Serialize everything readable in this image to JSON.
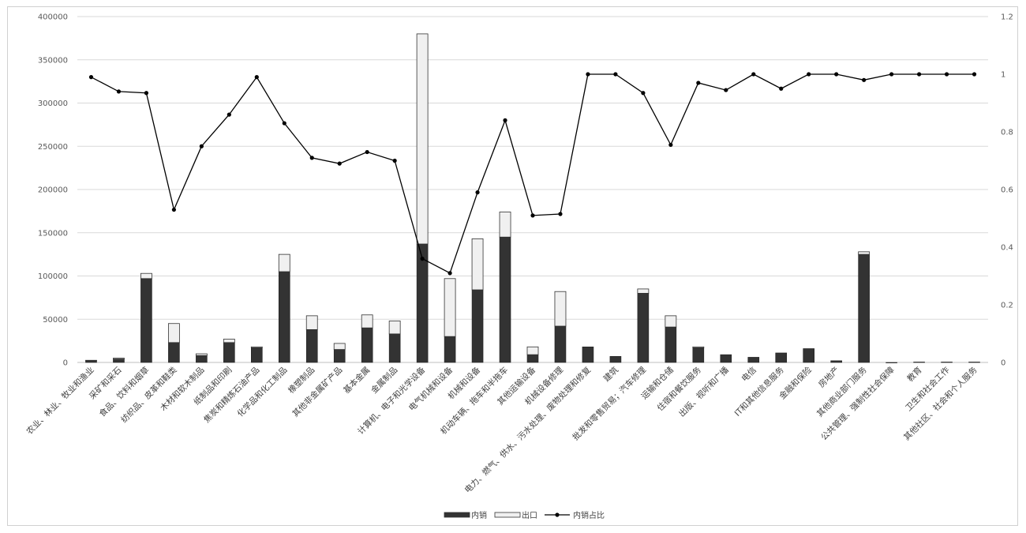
{
  "chart_data": {
    "type": "bar",
    "stacked": true,
    "categories": [
      "农业、林业、牧业和渔业",
      "采矿和采石",
      "食品、饮料和烟草",
      "纺织品、皮革和鞋类",
      "木材和软木制品",
      "纸制品和印刷",
      "焦炭和精炼石油产品",
      "化学品和化工制品",
      "橡塑制品",
      "其他非金属矿产品",
      "基本金属",
      "金属制品",
      "计算机、电子和光学设备",
      "电气机械和设备",
      "机械和设备",
      "机动车辆、拖车和半拖车",
      "其他运输设备",
      "机械设备修理",
      "电力、燃气、供水、污水处理、废物处理和修复",
      "建筑",
      "批发和零售贸易；汽车修理",
      "运输和仓储",
      "住宿和餐饮服务",
      "出版、视听和广播",
      "电信",
      "IT和其他信息服务",
      "金融和保险",
      "房地产",
      "其他商业部门服务",
      "公共管理、强制性社会保障",
      "教育",
      "卫生和社会工作",
      "其他社区、社会和个人服务"
    ],
    "series": [
      {
        "name": "内销",
        "kind": "bar",
        "axis": "left",
        "color": "#333333",
        "values": [
          2000,
          4000,
          97000,
          23000,
          8000,
          23000,
          17000,
          105000,
          38000,
          15000,
          40000,
          33000,
          137000,
          30000,
          84000,
          145000,
          9000,
          42000,
          18000,
          7000,
          80000,
          41000,
          17000,
          9000,
          6000,
          11000,
          16000,
          2000,
          125000,
          0,
          500,
          500,
          500
        ]
      },
      {
        "name": "出口",
        "kind": "bar",
        "axis": "left",
        "color": "#f0f0f0",
        "values": [
          500,
          1000,
          6000,
          22000,
          2000,
          4000,
          1000,
          20000,
          16000,
          7000,
          15000,
          15000,
          243000,
          67000,
          59000,
          29000,
          9000,
          40000,
          0,
          0,
          5000,
          13000,
          1000,
          0,
          0,
          0,
          0,
          0,
          3000,
          0,
          0,
          0,
          0
        ]
      },
      {
        "name": "内销占比",
        "kind": "line",
        "axis": "right",
        "color": "#000000",
        "values": [
          0.99,
          0.94,
          0.935,
          0.53,
          0.75,
          0.86,
          0.99,
          0.83,
          0.71,
          0.69,
          0.73,
          0.7,
          0.36,
          0.31,
          0.59,
          0.84,
          0.51,
          0.515,
          1.0,
          1.0,
          0.935,
          0.755,
          0.97,
          0.945,
          1.0,
          0.95,
          1.0,
          1.0,
          0.98,
          1.0,
          1.0,
          1.0,
          1.0
        ]
      }
    ],
    "y_left": {
      "min": 0,
      "max": 400000,
      "ticks": [
        "0",
        "50000",
        "100000",
        "150000",
        "200000",
        "250000",
        "300000",
        "350000",
        "400000"
      ]
    },
    "y_right": {
      "min": 0,
      "max": 1.2,
      "ticks": [
        "0",
        "0.2",
        "0.4",
        "0.6",
        "0.8",
        "1",
        "1.2"
      ]
    },
    "grid": true,
    "legend_position": "bottom",
    "legend": [
      "内销",
      "出口",
      "内销占比"
    ],
    "title": "",
    "xlabel": "",
    "ylabel": ""
  }
}
